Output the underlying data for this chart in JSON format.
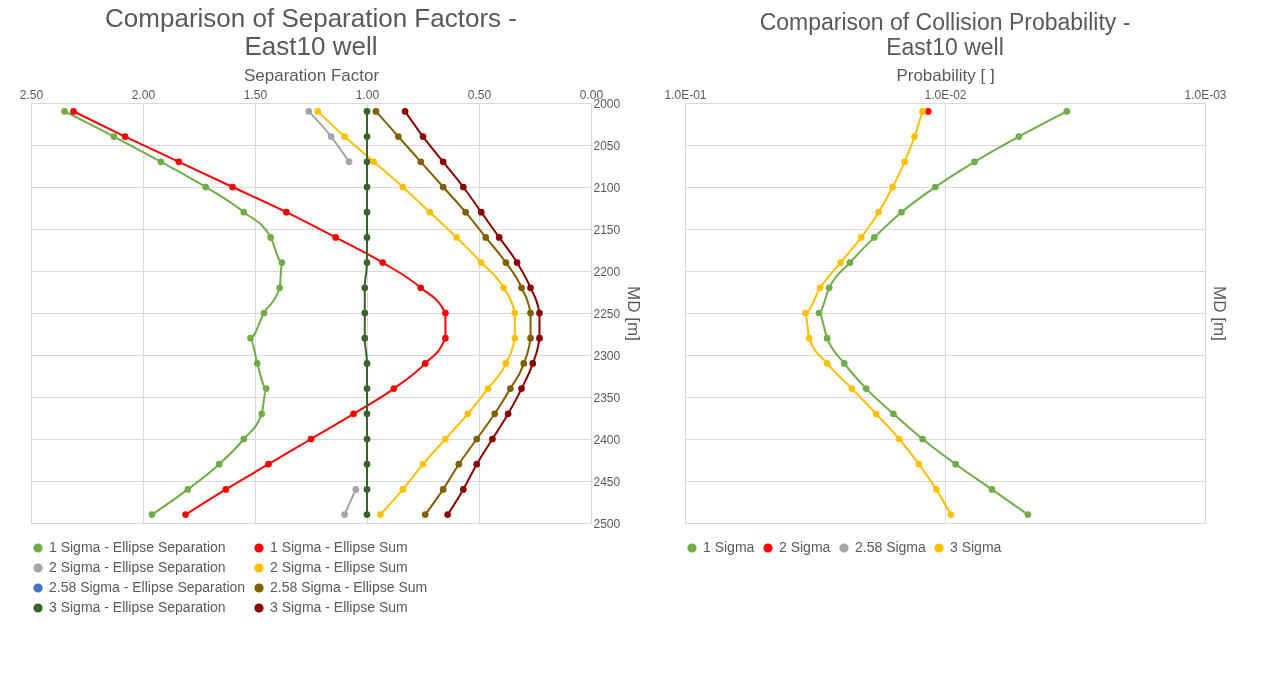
{
  "chart_data": [
    {
      "type": "line",
      "title": "Comparison of Separation Factors -\nEast10 well",
      "xlabel": "Separation Factor",
      "ylabel": "MD [m]",
      "orientation": "horizontal",
      "x": [
        2010,
        2040,
        2070,
        2100,
        2130,
        2160,
        2190,
        2220,
        2250,
        2280,
        2310,
        2340,
        2370,
        2400,
        2430,
        2460,
        2490
      ],
      "xlim": [
        2.5,
        0
      ],
      "xticks": [
        {
          "value": 2.5,
          "label": "2.50"
        },
        {
          "value": 2,
          "label": "2.00"
        },
        {
          "value": 1.5,
          "label": "1.50"
        },
        {
          "value": 1,
          "label": "1.00"
        },
        {
          "value": 0.5,
          "label": "0.50"
        },
        {
          "value": 0,
          "label": "0.00"
        }
      ],
      "ylim": [
        2500,
        2000
      ],
      "yticks": [
        2000,
        2050,
        2100,
        2150,
        2200,
        2250,
        2300,
        2350,
        2400,
        2450,
        2500
      ],
      "grid": true,
      "legend": "bottom",
      "marker": "circle",
      "line_style": "solid",
      "series": [
        {
          "name": "1 Sigma - Ellipse Separation",
          "color": "#70ad47",
          "values": [
            2.35,
            2.13,
            1.92,
            1.72,
            1.55,
            1.43,
            1.38,
            1.39,
            1.46,
            1.52,
            1.49,
            1.45,
            1.47,
            1.55,
            1.66,
            1.8,
            1.96
          ]
        },
        {
          "name": "1 Sigma - Ellipse Sum",
          "color": "#ff0000",
          "values": [
            2.31,
            2.08,
            1.84,
            1.6,
            1.36,
            1.14,
            0.93,
            0.76,
            0.65,
            0.65,
            0.74,
            0.88,
            1.06,
            1.25,
            1.44,
            1.63,
            1.81
          ]
        },
        {
          "name": "2 Sigma - Ellipse Separation",
          "color": "#a5a5a5",
          "values": [
            1.26,
            1.16,
            1.08,
            null,
            null,
            null,
            null,
            null,
            null,
            null,
            null,
            null,
            null,
            null,
            null,
            1.05,
            1.1
          ]
        },
        {
          "name": "2 Sigma - Ellipse Sum",
          "color": "#ffc000",
          "values": [
            1.22,
            1.1,
            0.97,
            0.84,
            0.72,
            0.6,
            0.49,
            0.39,
            0.34,
            0.34,
            0.38,
            0.46,
            0.55,
            0.65,
            0.75,
            0.84,
            0.94
          ]
        },
        {
          "name": "2.58 Sigma - Ellipse Separation",
          "color": "#4472c4",
          "values": [
            null,
            null,
            null,
            null,
            null,
            null,
            null,
            null,
            null,
            null,
            null,
            null,
            null,
            null,
            null,
            null,
            null
          ]
        },
        {
          "name": "2.58 Sigma - Ellipse Sum",
          "color": "#806000",
          "values": [
            0.96,
            0.86,
            0.76,
            0.66,
            0.56,
            0.47,
            0.38,
            0.31,
            0.27,
            0.27,
            0.3,
            0.36,
            0.43,
            0.51,
            0.59,
            0.66,
            0.74
          ]
        },
        {
          "name": "3 Sigma - Ellipse Separation",
          "color": "#38632a",
          "values": [
            1.0,
            1.0,
            1.0,
            1.0,
            1.0,
            1.0,
            1.0,
            1.01,
            1.01,
            1.01,
            1.0,
            1.0,
            1.0,
            1.0,
            1.0,
            1.0,
            1.0
          ]
        },
        {
          "name": "3 Sigma - Ellipse Sum",
          "color": "#8b0000",
          "values": [
            0.83,
            0.75,
            0.66,
            0.57,
            0.49,
            0.41,
            0.33,
            0.27,
            0.23,
            0.23,
            0.26,
            0.31,
            0.37,
            0.44,
            0.51,
            0.57,
            0.64
          ]
        }
      ]
    },
    {
      "type": "line",
      "title": "Comparison of Collision Probability -\nEast10 well",
      "xlabel": "Probability [ ]",
      "ylabel": "MD [m]",
      "orientation": "horizontal",
      "log": "x",
      "tick_labels": "x",
      "x": [
        2010,
        2040,
        2070,
        2100,
        2130,
        2160,
        2190,
        2220,
        2250,
        2280,
        2310,
        2340,
        2370,
        2400,
        2430,
        2460,
        2490
      ],
      "xlim": [
        0.1,
        0.001
      ],
      "xticks": [
        {
          "value": 0.1,
          "label": "1.0E-01"
        },
        {
          "value": 0.01,
          "label": "1.0E-02"
        },
        {
          "value": 0.001,
          "label": "1.0E-03"
        }
      ],
      "ylim": [
        2500,
        2000
      ],
      "yticks": [
        2000,
        2050,
        2100,
        2150,
        2200,
        2250,
        2300,
        2350,
        2400,
        2450,
        2500
      ],
      "grid": true,
      "legend": "bottom",
      "marker": "circle",
      "line_style": "solid",
      "series": [
        {
          "name": "1 Sigma",
          "color": "#70ad47",
          "values": [
            0.0034,
            0.0052,
            0.0077,
            0.0109,
            0.0147,
            0.0187,
            0.0232,
            0.0279,
            0.0305,
            0.0284,
            0.0244,
            0.0201,
            0.0158,
            0.0122,
            0.0091,
            0.0066,
            0.0048
          ]
        },
        {
          "name": "2 Sigma",
          "color": "#ff0000",
          "values": [
            0.0116,
            null,
            null,
            null,
            null,
            null,
            null,
            null,
            null,
            null,
            null,
            null,
            null,
            null,
            null,
            null,
            null
          ]
        },
        {
          "name": "2.58 Sigma",
          "color": "#a5a5a5",
          "values": [
            null,
            null,
            null,
            null,
            null,
            null,
            null,
            null,
            null,
            null,
            null,
            null,
            null,
            null,
            null,
            null,
            null
          ]
        },
        {
          "name": "3 Sigma",
          "color": "#ffc000",
          "values": [
            0.0122,
            0.0131,
            0.0143,
            0.0159,
            0.018,
            0.021,
            0.0252,
            0.0302,
            0.0344,
            0.0333,
            0.0284,
            0.0228,
            0.0184,
            0.015,
            0.0126,
            0.0108,
            0.0095
          ]
        }
      ]
    }
  ]
}
